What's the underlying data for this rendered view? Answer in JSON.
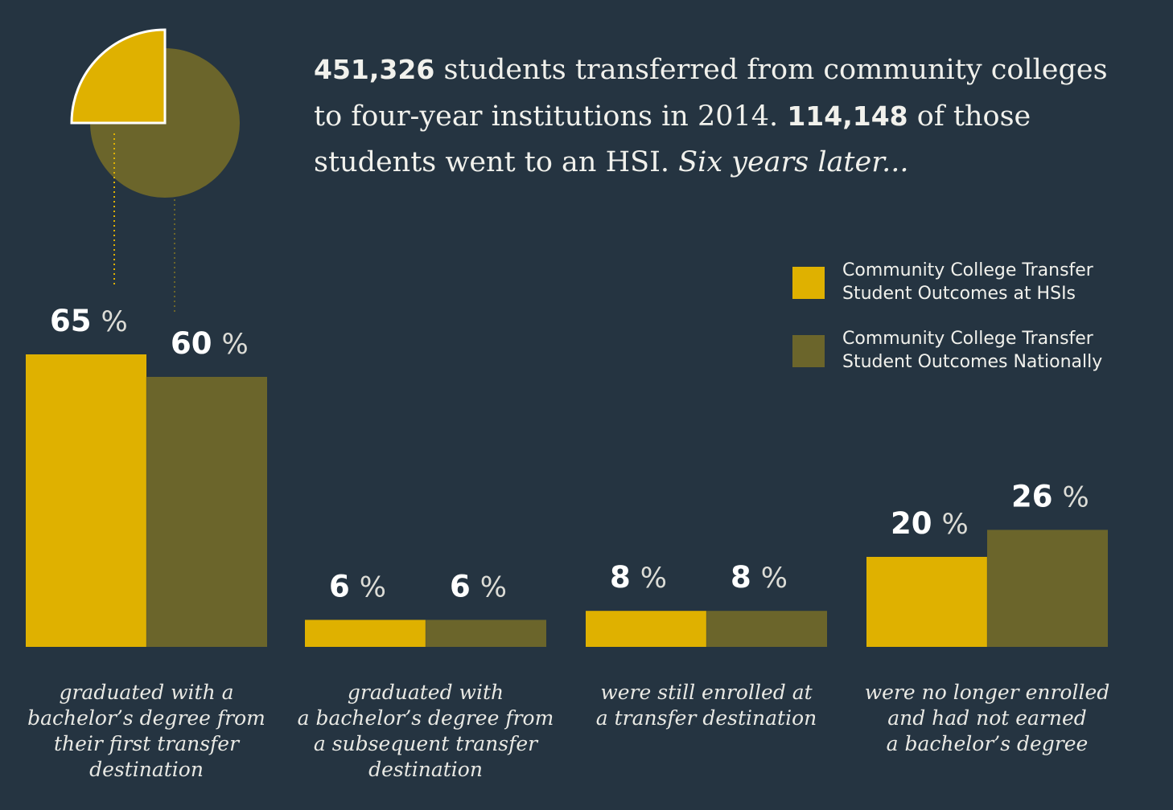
{
  "headline": {
    "stat1": "451,326",
    "text1": " students transferred from community colleges to four-year institutions in 2014. ",
    "stat2": "114,148",
    "text2": " of those students went to an HSI. ",
    "italic": "Six years later..."
  },
  "legend": [
    {
      "label": "Community College Transfer Student Outcomes at HSIs",
      "color": "#dfb100"
    },
    {
      "label": "Community College Transfer Student Outcomes Nationally",
      "color": "#6b652b"
    }
  ],
  "pie_icon": {
    "highlight_fraction": 0.25,
    "colors": {
      "base": "#6b652b",
      "highlight": "#dfb100",
      "stroke": "#ffffff"
    }
  },
  "percent_symbol": "%",
  "chart_data": {
    "type": "bar",
    "categories": [
      "graduated with a bachelor’s degree from their first transfer destination",
      "graduated with a bachelor’s degree from a subsequent transfer destination",
      "were still enrolled at a transfer destination",
      "were no longer enrolled and had not earned a bachelor’s degree"
    ],
    "caption_lines": [
      "graduated with a\nbachelor’s degree from\ntheir first transfer\ndestination",
      "graduated with\na bachelor’s degree from\na subsequent transfer\ndestination",
      "were still enrolled at\na transfer destination",
      "were no longer enrolled\nand had not earned\na bachelor’s degree"
    ],
    "series": [
      {
        "name": "Community College Transfer Student Outcomes at HSIs",
        "values": [
          65,
          6,
          8,
          20
        ],
        "color": "#dfb100"
      },
      {
        "name": "Community College Transfer Student Outcomes Nationally",
        "values": [
          60,
          6,
          8,
          26
        ],
        "color": "#6b652b"
      }
    ],
    "ylim": [
      0,
      100
    ],
    "grid": false,
    "legend_position": "top-right"
  }
}
